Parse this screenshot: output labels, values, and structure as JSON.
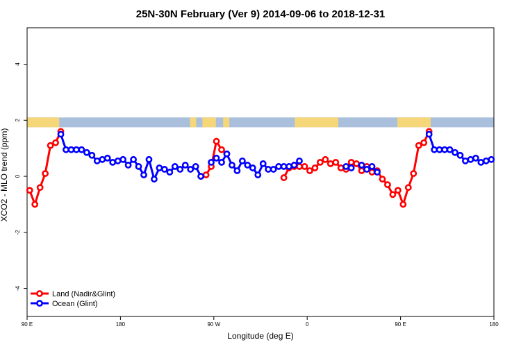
{
  "chart_data": {
    "type": "line",
    "title": "25N-30N February (Ver 9)   2014-09-06 to 2018-12-31",
    "xlabel": "Longitude (deg E)",
    "ylabel": "XCO2 - MLO trend (ppm)",
    "xlim": [
      90,
      540
    ],
    "ylim": [
      -5,
      5.3
    ],
    "x_ticks": [
      {
        "value": 90,
        "label": "90 E"
      },
      {
        "value": 180,
        "label": "180"
      },
      {
        "value": 270,
        "label": "90 W"
      },
      {
        "value": 360,
        "label": "0"
      },
      {
        "value": 450,
        "label": "90 E"
      },
      {
        "value": 540,
        "label": "180"
      }
    ],
    "y_ticks": [
      {
        "value": -4,
        "label": "-4"
      },
      {
        "value": -2,
        "label": "-2"
      },
      {
        "value": 0,
        "label": "0"
      },
      {
        "value": 2,
        "label": "2"
      },
      {
        "value": 4,
        "label": "4"
      }
    ],
    "grid": false,
    "legend_position": "bottom-left",
    "land_ocean_bar": {
      "y_range": [
        1.75,
        2.1
      ],
      "land_color": "#f5d77a",
      "ocean_color": "#a9bfdc",
      "land_segments": [
        [
          90,
          121
        ],
        [
          247,
          253
        ],
        [
          259,
          272
        ],
        [
          279,
          285
        ],
        [
          348,
          390
        ],
        [
          447,
          479
        ]
      ]
    },
    "series": [
      {
        "name": "Land (Nadir&Glint)",
        "color": "#ff0000",
        "segments": [
          [
            [
              92.5,
              -0.5
            ],
            [
              97.5,
              -1.0
            ],
            [
              102.5,
              -0.4
            ],
            [
              107.5,
              0.1
            ],
            [
              112.5,
              1.1
            ],
            [
              117.5,
              1.2
            ],
            [
              122.5,
              1.6
            ]
          ],
          [
            [
              257.5,
              0.0
            ],
            [
              262.5,
              0.05
            ],
            [
              267.5,
              0.35
            ],
            [
              272.5,
              1.25
            ],
            [
              277.5,
              0.95
            ],
            [
              282.5,
              0.8
            ]
          ],
          [
            [
              337.5,
              -0.05
            ],
            [
              342.5,
              0.3
            ],
            [
              347.5,
              0.35
            ],
            [
              352.5,
              0.35
            ],
            [
              357.5,
              0.35
            ],
            [
              362.5,
              0.2
            ],
            [
              367.5,
              0.3
            ],
            [
              372.5,
              0.5
            ],
            [
              377.5,
              0.6
            ],
            [
              382.5,
              0.45
            ],
            [
              387.5,
              0.5
            ],
            [
              392.5,
              0.3
            ],
            [
              397.5,
              0.25
            ],
            [
              402.5,
              0.5
            ],
            [
              407.5,
              0.45
            ],
            [
              412.5,
              0.2
            ],
            [
              417.5,
              0.35
            ],
            [
              422.5,
              0.15
            ],
            [
              427.5,
              0.2
            ],
            [
              432.5,
              -0.1
            ],
            [
              437.5,
              -0.3
            ],
            [
              442.5,
              -0.65
            ],
            [
              447.5,
              -0.5
            ],
            [
              452.5,
              -1.0
            ],
            [
              457.5,
              -0.4
            ],
            [
              462.5,
              0.1
            ],
            [
              467.5,
              1.1
            ],
            [
              472.5,
              1.2
            ],
            [
              477.5,
              1.6
            ]
          ]
        ]
      },
      {
        "name": "Ocean (Glint)",
        "color": "#0000ff",
        "segments": [
          [
            [
              122.5,
              1.5
            ],
            [
              127.5,
              0.95
            ],
            [
              132.5,
              0.95
            ],
            [
              137.5,
              0.95
            ],
            [
              142.5,
              0.95
            ],
            [
              147.5,
              0.85
            ],
            [
              152.5,
              0.75
            ],
            [
              157.5,
              0.55
            ],
            [
              162.5,
              0.6
            ],
            [
              167.5,
              0.65
            ],
            [
              172.5,
              0.5
            ],
            [
              177.5,
              0.55
            ],
            [
              182.5,
              0.6
            ],
            [
              187.5,
              0.4
            ],
            [
              192.5,
              0.6
            ],
            [
              197.5,
              0.35
            ],
            [
              202.5,
              0.05
            ],
            [
              207.5,
              0.6
            ],
            [
              212.5,
              -0.1
            ],
            [
              217.5,
              0.3
            ],
            [
              222.5,
              0.25
            ],
            [
              227.5,
              0.15
            ],
            [
              232.5,
              0.35
            ],
            [
              237.5,
              0.25
            ],
            [
              242.5,
              0.4
            ],
            [
              247.5,
              0.25
            ],
            [
              252.5,
              0.35
            ],
            [
              257.5,
              0.0
            ]
          ],
          [
            [
              267.5,
              0.5
            ],
            [
              272.5,
              0.65
            ],
            [
              277.5,
              0.5
            ],
            [
              282.5,
              0.8
            ],
            [
              287.5,
              0.4
            ],
            [
              292.5,
              0.2
            ],
            [
              297.5,
              0.55
            ],
            [
              302.5,
              0.4
            ],
            [
              307.5,
              0.3
            ],
            [
              312.5,
              0.05
            ],
            [
              317.5,
              0.45
            ],
            [
              322.5,
              0.25
            ],
            [
              327.5,
              0.25
            ],
            [
              332.5,
              0.35
            ],
            [
              337.5,
              0.35
            ],
            [
              342.5,
              0.35
            ],
            [
              347.5,
              0.4
            ],
            [
              352.5,
              0.55
            ]
          ],
          [
            [
              397.5,
              0.35
            ],
            [
              402.5,
              0.3
            ]
          ],
          [
            [
              412.5,
              0.4
            ],
            [
              417.5,
              0.25
            ],
            [
              422.5,
              0.35
            ],
            [
              427.5,
              0.15
            ]
          ],
          [
            [
              477.5,
              1.5
            ],
            [
              482.5,
              0.95
            ],
            [
              487.5,
              0.95
            ],
            [
              492.5,
              0.95
            ],
            [
              497.5,
              0.95
            ],
            [
              502.5,
              0.85
            ],
            [
              507.5,
              0.75
            ],
            [
              512.5,
              0.55
            ],
            [
              517.5,
              0.6
            ],
            [
              522.5,
              0.65
            ],
            [
              527.5,
              0.5
            ],
            [
              532.5,
              0.55
            ],
            [
              537.5,
              0.6
            ]
          ]
        ]
      }
    ]
  }
}
